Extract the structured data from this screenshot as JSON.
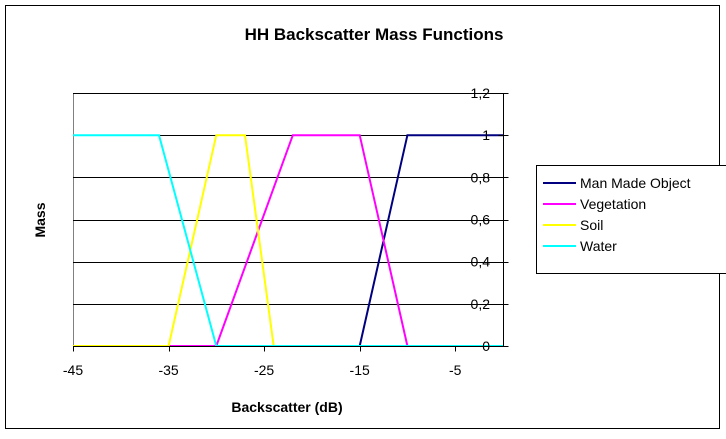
{
  "chart_data": {
    "type": "line",
    "title": "HH Backscatter Mass Functions",
    "xlabel": "Backscatter (dB)",
    "ylabel": "Mass",
    "xlim": [
      -45,
      0
    ],
    "ylim": [
      0,
      1.2
    ],
    "x_ticks": [
      -45,
      -35,
      -25,
      -15,
      -5
    ],
    "x_tick_labels": [
      "-45",
      "-35",
      "-25",
      "-15",
      "-5"
    ],
    "y_ticks": [
      0,
      0.2,
      0.4,
      0.6,
      0.8,
      1,
      1.2
    ],
    "y_tick_labels": [
      "0",
      "0,2",
      "0,4",
      "0,6",
      "0,8",
      "1",
      "1,2"
    ],
    "grid": true,
    "legend_position": "right",
    "series": [
      {
        "name": "Man Made Object",
        "color": "#000080",
        "points": [
          [
            -45,
            0
          ],
          [
            -15,
            0
          ],
          [
            -10,
            1
          ],
          [
            0,
            1
          ]
        ]
      },
      {
        "name": "Vegetation",
        "color": "#ff00ff",
        "points": [
          [
            -45,
            0
          ],
          [
            -30,
            0
          ],
          [
            -22,
            1
          ],
          [
            -15,
            1
          ],
          [
            -10,
            0
          ],
          [
            0,
            0
          ]
        ]
      },
      {
        "name": "Soil",
        "color": "#ffff00",
        "points": [
          [
            -45,
            0
          ],
          [
            -35,
            0
          ],
          [
            -30,
            1
          ],
          [
            -27,
            1
          ],
          [
            -24,
            0
          ],
          [
            0,
            0
          ]
        ]
      },
      {
        "name": "Water",
        "color": "#00ffff",
        "points": [
          [
            -45,
            1
          ],
          [
            -36,
            1
          ],
          [
            -30,
            0
          ],
          [
            0,
            0
          ]
        ]
      }
    ]
  }
}
